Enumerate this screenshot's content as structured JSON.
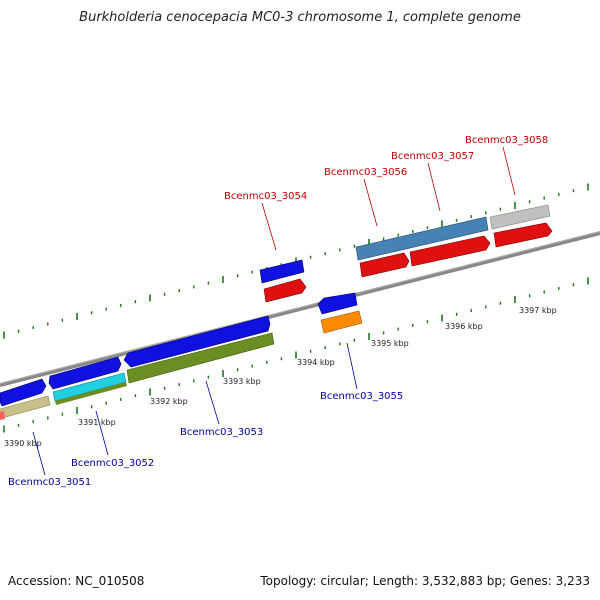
{
  "title": "Burkholderia cenocepacia MC0-3 chromosome 1, complete genome",
  "footer": {
    "accession": "Accession: NC_010508",
    "summary": "Topology: circular; Length: 3,532,883 bp; Genes: 3,233"
  },
  "scale_labels": [
    "3390 kbp",
    "3391 kbp",
    "3392 kbp",
    "3393 kbp",
    "3394 kbp",
    "3395 kbp",
    "3396 kbp",
    "3397 kbp"
  ],
  "gene_labels_top": [
    "Bcenmc03_3054",
    "Bcenmc03_3056",
    "Bcenmc03_3057",
    "Bcenmc03_3058"
  ],
  "gene_labels_bottom": [
    "Bcenmc03_3051",
    "Bcenmc03_3052",
    "Bcenmc03_3053",
    "Bcenmc03_3055"
  ],
  "colors": {
    "backbone": "#808080",
    "tick": "#1a7a1a",
    "cds_forward": "#1010e0",
    "cds_reverse": "#e01010",
    "protein_bar_olive": "#6b8e23",
    "protein_bar_tan": "#c8c08a",
    "protein_bar_cyan": "#20d0e0",
    "protein_bar_orange": "#ff8c00",
    "protein_bar_steel": "#4682b4",
    "protein_bar_grey": "#bdbdbd",
    "label_top": "#c00000",
    "label_bottom": "#0000a0"
  }
}
